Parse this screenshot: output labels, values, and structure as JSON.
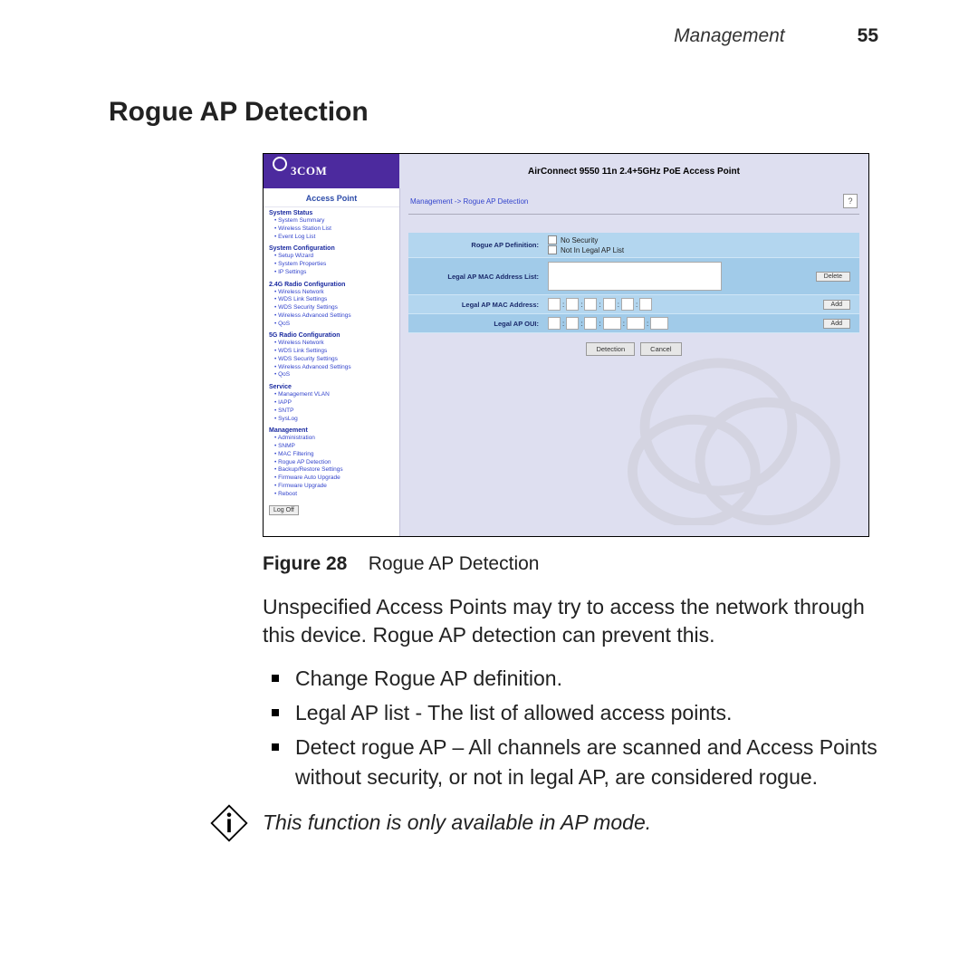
{
  "doc": {
    "header_label": "Management",
    "page_number": "55",
    "section_title": "Rogue AP Detection",
    "figure_label": "Figure 28",
    "figure_caption": "Rogue AP Detection",
    "intro": "Unspecified Access Points may try to access the network through this device. Rogue AP detection can prevent this.",
    "bullets": [
      "Change Rogue AP definition.",
      "Legal AP list - The list of allowed access points.",
      "Detect rogue AP – All channels are scanned and Access Points without security, or not in legal AP, are considered rogue."
    ],
    "note": "This function is only available in AP mode."
  },
  "shot": {
    "brand": "3COM",
    "product_title": "AirConnect 9550 11n 2.4+5GHz PoE Access Point",
    "sidebar_heading": "Access Point",
    "breadcrumb": "Management -> Rogue AP Detection",
    "help": "?",
    "nav": [
      {
        "head": "System Status",
        "items": [
          "System Summary",
          "Wireless Station List",
          "Event Log List"
        ]
      },
      {
        "head": "System Configuration",
        "items": [
          "Setup Wizard",
          "System Properties",
          "IP Settings"
        ]
      },
      {
        "head": "2.4G Radio Configuration",
        "items": [
          "Wireless Network",
          "WDS Link Settings",
          "WDS Security Settings",
          "Wireless Advanced Settings",
          "QoS"
        ]
      },
      {
        "head": "5G Radio Configuration",
        "items": [
          "Wireless Network",
          "WDS Link Settings",
          "WDS Security Settings",
          "Wireless Advanced Settings",
          "QoS"
        ]
      },
      {
        "head": "Service",
        "items": [
          "Management VLAN",
          "IAPP",
          "SNTP",
          "SysLog"
        ]
      },
      {
        "head": "Management",
        "items": [
          "Administration",
          "SNMP",
          "MAC Filtering",
          "Rogue AP Detection",
          "Backup/Restore Settings",
          "Firmware Auto Upgrade",
          "Firmware Upgrade",
          "Reboot"
        ]
      }
    ],
    "logoff": "Log Off",
    "rows": {
      "def_label": "Rogue AP Definition:",
      "def_opt1": "No Security",
      "def_opt2": "Not In Legal AP List",
      "list_label": "Legal AP MAC Address List:",
      "mac_label": "Legal AP MAC Address:",
      "oui_label": "Legal AP OUI:",
      "btn_delete": "Delete",
      "btn_add1": "Add",
      "btn_add2": "Add"
    },
    "actions": {
      "primary": "Detection",
      "secondary": "Cancel"
    }
  },
  "colors": {
    "purple": "#4c2a9e",
    "panel_light": "#b3d6ef",
    "panel_alt": "#a1cbe9",
    "link": "#3344cc",
    "bg": "#dedff0"
  }
}
